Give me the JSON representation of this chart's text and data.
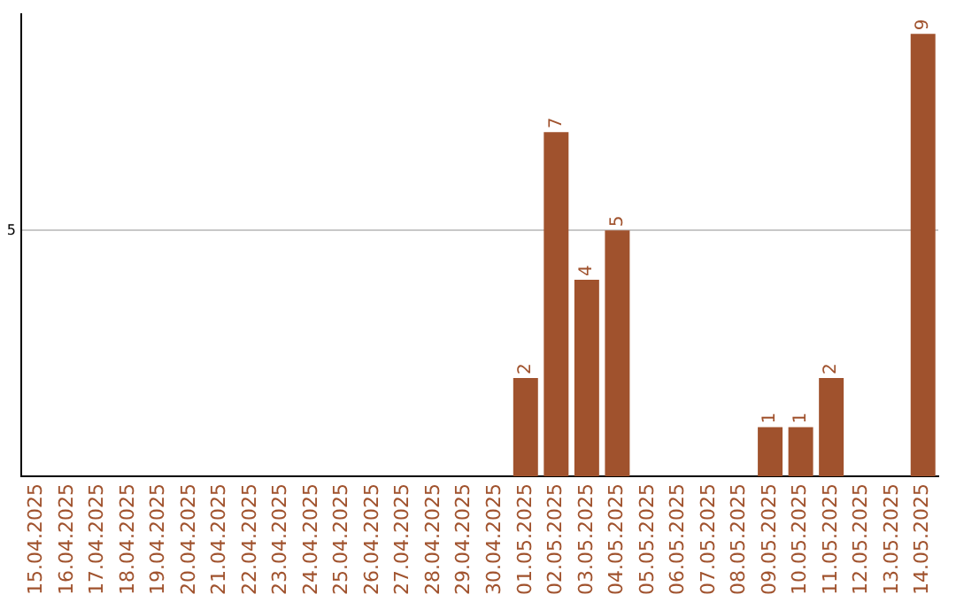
{
  "chart_data": {
    "type": "bar",
    "categories": [
      "15.04.2025",
      "16.04.2025",
      "17.04.2025",
      "18.04.2025",
      "19.04.2025",
      "20.04.2025",
      "21.04.2025",
      "22.04.2025",
      "23.04.2025",
      "24.04.2025",
      "25.04.2025",
      "26.04.2025",
      "27.04.2025",
      "28.04.2025",
      "29.04.2025",
      "30.04.2025",
      "01.05.2025",
      "02.05.2025",
      "03.05.2025",
      "04.05.2025",
      "05.05.2025",
      "06.05.2025",
      "07.05.2025",
      "08.05.2025",
      "09.05.2025",
      "10.05.2025",
      "11.05.2025",
      "12.05.2025",
      "13.05.2025",
      "14.05.2025"
    ],
    "values": [
      null,
      null,
      null,
      null,
      null,
      null,
      null,
      null,
      null,
      null,
      null,
      null,
      null,
      null,
      null,
      null,
      2,
      7,
      4,
      5,
      null,
      null,
      null,
      null,
      1,
      1,
      2,
      null,
      null,
      9
    ],
    "data_labels": true,
    "color": "#a0522d",
    "ylim": [
      0,
      9.4
    ],
    "yticks": [
      5
    ],
    "grid": "y",
    "legend": false
  }
}
